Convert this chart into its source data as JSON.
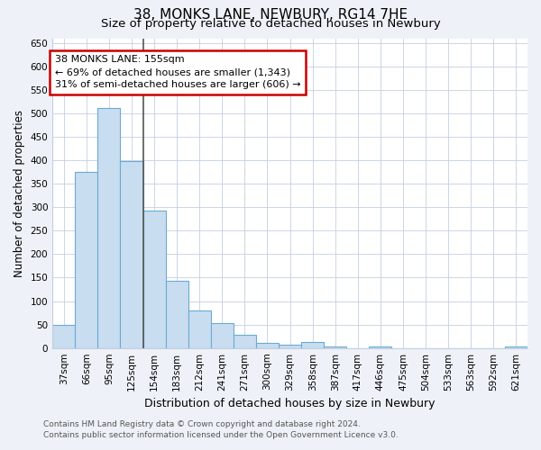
{
  "title": "38, MONKS LANE, NEWBURY, RG14 7HE",
  "subtitle": "Size of property relative to detached houses in Newbury",
  "xlabel": "Distribution of detached houses by size in Newbury",
  "ylabel": "Number of detached properties",
  "categories": [
    "37sqm",
    "66sqm",
    "95sqm",
    "125sqm",
    "154sqm",
    "183sqm",
    "212sqm",
    "241sqm",
    "271sqm",
    "300sqm",
    "329sqm",
    "358sqm",
    "387sqm",
    "417sqm",
    "446sqm",
    "475sqm",
    "504sqm",
    "533sqm",
    "563sqm",
    "592sqm",
    "621sqm"
  ],
  "values": [
    50,
    375,
    512,
    398,
    292,
    143,
    80,
    54,
    28,
    11,
    8,
    12,
    3,
    0,
    4,
    0,
    0,
    0,
    0,
    0,
    3
  ],
  "bar_color": "#c9ddf0",
  "bar_edge_color": "#6aaad4",
  "vline_x_index": 4,
  "vline_color": "#555555",
  "annotation_text_line1": "38 MONKS LANE: 155sqm",
  "annotation_text_line2": "← 69% of detached houses are smaller (1,343)",
  "annotation_text_line3": "31% of semi-detached houses are larger (606) →",
  "annotation_box_facecolor": "white",
  "annotation_box_edgecolor": "#cc0000",
  "ylim_max": 660,
  "yticks": [
    0,
    50,
    100,
    150,
    200,
    250,
    300,
    350,
    400,
    450,
    500,
    550,
    600,
    650
  ],
  "background_color": "#eef2f8",
  "plot_background_color": "white",
  "grid_color": "#c5cfe0",
  "title_fontsize": 11,
  "subtitle_fontsize": 9.5,
  "ylabel_fontsize": 8.5,
  "xlabel_fontsize": 9,
  "tick_fontsize": 7.5,
  "annotation_fontsize": 8,
  "footer_line1": "Contains HM Land Registry data © Crown copyright and database right 2024.",
  "footer_line2": "Contains public sector information licensed under the Open Government Licence v3.0.",
  "footer_fontsize": 6.5
}
